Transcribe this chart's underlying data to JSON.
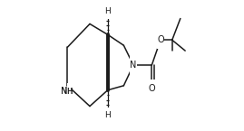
{
  "bg_color": "#ffffff",
  "line_color": "#1a1a1a",
  "figsize": [
    2.69,
    1.45
  ],
  "dpi": 100,
  "xlim": [
    0.0,
    1.0
  ],
  "ylim": [
    0.0,
    1.0
  ]
}
